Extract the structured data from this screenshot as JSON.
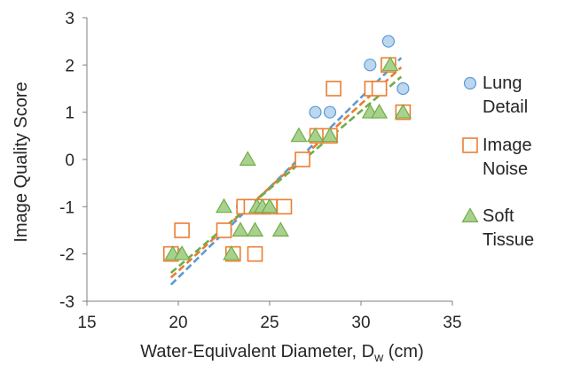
{
  "chart_data": {
    "type": "scatter",
    "title": "",
    "xlabel": {
      "main": "Water-Equivalent Diameter, D",
      "sub": "w",
      "unit": " (cm)"
    },
    "ylabel": "Image Quality Score",
    "xlim": [
      15,
      35
    ],
    "ylim": [
      -3,
      3
    ],
    "xticks": [
      "15",
      "20",
      "25",
      "30",
      "35"
    ],
    "yticks": [
      "-3",
      "-2",
      "-1",
      "0",
      "1",
      "2",
      "3"
    ],
    "grid": false,
    "legend_position": "right",
    "series": [
      {
        "name": [
          "Lung",
          "Detail"
        ],
        "marker": "circle",
        "color": "#5b9bd5",
        "fill": "#bdd7ee",
        "trend": [
          [
            19.6,
            -2.65
          ],
          [
            32.2,
            2.15
          ]
        ],
        "points": [
          [
            19.9,
            -2
          ],
          [
            20.2,
            -1.5
          ],
          [
            22.6,
            -1.5
          ],
          [
            23.0,
            -2
          ],
          [
            23.5,
            -1
          ],
          [
            24.0,
            -1
          ],
          [
            24.3,
            -1
          ],
          [
            25.0,
            -1
          ],
          [
            25.8,
            -1
          ],
          [
            26.8,
            0
          ],
          [
            27.5,
            1
          ],
          [
            28.3,
            1
          ],
          [
            28.5,
            1.5
          ],
          [
            30.5,
            2
          ],
          [
            31.5,
            2.5
          ],
          [
            32.3,
            1.5
          ],
          [
            31.0,
            1.5
          ],
          [
            28.4,
            0.5
          ]
        ]
      },
      {
        "name": [
          "Image",
          "Noise"
        ],
        "marker": "square",
        "color": "#ed7d31",
        "fill": "#ffffff",
        "trend": [
          [
            19.6,
            -2.5
          ],
          [
            32.2,
            1.95
          ]
        ],
        "points": [
          [
            19.6,
            -2
          ],
          [
            20.2,
            -1.5
          ],
          [
            22.5,
            -1.5
          ],
          [
            23.0,
            -2
          ],
          [
            23.6,
            -1
          ],
          [
            24.0,
            -1
          ],
          [
            24.2,
            -2
          ],
          [
            24.6,
            -1
          ],
          [
            25.0,
            -1
          ],
          [
            25.8,
            -1
          ],
          [
            26.8,
            0
          ],
          [
            27.6,
            0.5
          ],
          [
            28.3,
            0.5
          ],
          [
            28.5,
            1.5
          ],
          [
            30.6,
            1.5
          ],
          [
            31.0,
            1.5
          ],
          [
            31.5,
            2
          ],
          [
            32.3,
            1
          ]
        ]
      },
      {
        "name": [
          "Soft",
          "Tissue"
        ],
        "marker": "triangle",
        "color": "#70ad47",
        "fill": "#a9d18e",
        "trend": [
          [
            19.6,
            -2.4
          ],
          [
            32.2,
            1.75
          ]
        ],
        "points": [
          [
            19.7,
            -2
          ],
          [
            20.2,
            -2
          ],
          [
            22.5,
            -1
          ],
          [
            22.9,
            -2
          ],
          [
            23.4,
            -1.5
          ],
          [
            23.8,
            0
          ],
          [
            24.2,
            -1.5
          ],
          [
            24.3,
            -1
          ],
          [
            24.6,
            -1
          ],
          [
            25.0,
            -1
          ],
          [
            25.6,
            -1.5
          ],
          [
            26.6,
            0.5
          ],
          [
            27.5,
            0.5
          ],
          [
            28.3,
            0.5
          ],
          [
            30.5,
            1
          ],
          [
            31.0,
            1
          ],
          [
            31.6,
            2
          ],
          [
            32.3,
            1
          ]
        ]
      }
    ]
  }
}
